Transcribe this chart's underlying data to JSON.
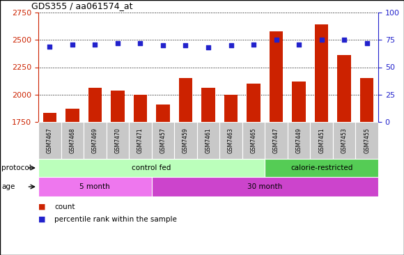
{
  "title": "GDS355 / aa061574_at",
  "samples": [
    "GSM7467",
    "GSM7468",
    "GSM7469",
    "GSM7470",
    "GSM7471",
    "GSM7457",
    "GSM7459",
    "GSM7461",
    "GSM7463",
    "GSM7465",
    "GSM7447",
    "GSM7449",
    "GSM7451",
    "GSM7453",
    "GSM7455"
  ],
  "counts": [
    1830,
    1870,
    2060,
    2035,
    2000,
    1910,
    2150,
    2060,
    2000,
    2100,
    2580,
    2120,
    2640,
    2360,
    2150
  ],
  "percentiles": [
    69,
    71,
    71,
    72,
    72,
    70,
    70,
    68,
    70,
    71,
    75,
    71,
    75,
    75,
    72
  ],
  "bar_color": "#CC2200",
  "dot_color": "#2222CC",
  "ylim_left": [
    1750,
    2750
  ],
  "ylim_right": [
    0,
    100
  ],
  "yticks_left": [
    1750,
    2000,
    2250,
    2500,
    2750
  ],
  "yticks_right": [
    0,
    25,
    50,
    75,
    100
  ],
  "bg_color": "#FFFFFF",
  "protocol_color_cf": "#BBFFBB",
  "protocol_color_cr": "#55CC55",
  "age_color_5": "#EE77EE",
  "age_color_30": "#CC44CC",
  "left_label_color": "#CC2200",
  "right_label_color": "#2222CC",
  "cf_count": 10,
  "cr_count": 5,
  "age5_count": 5,
  "age30_count": 10
}
